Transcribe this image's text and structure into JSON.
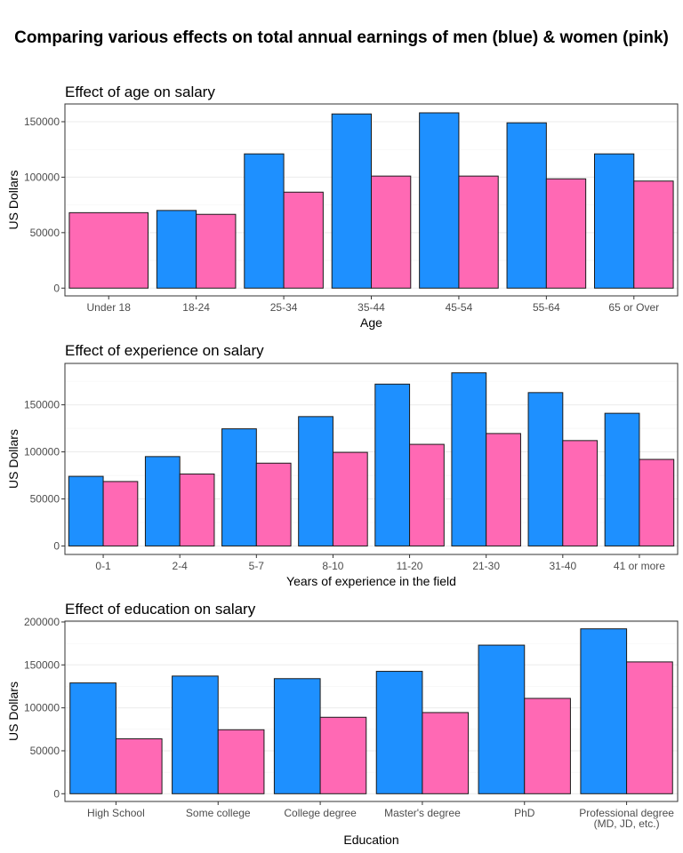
{
  "title": "Comparing various effects on total annual earnings of men (blue) & women (pink)",
  "colors": {
    "men": "#1e90ff",
    "women": "#ff69b4"
  },
  "chart_data": [
    {
      "type": "bar",
      "title": "Effect of age on salary",
      "xlabel": "Age",
      "ylabel": "US Dollars",
      "categories": [
        "Under 18",
        "18-24",
        "25-34",
        "35-44",
        "45-54",
        "55-64",
        "65 or Over"
      ],
      "series": [
        {
          "values": [
            null,
            70000,
            121000,
            157000,
            158000,
            149000,
            121000
          ]
        },
        {
          "values": [
            68000,
            66500,
            86500,
            101000,
            101000,
            98500,
            96500
          ]
        }
      ],
      "ylim": [
        -7000,
        166000
      ],
      "yticks": [
        0,
        50000,
        100000,
        150000
      ],
      "grid": true
    },
    {
      "type": "bar",
      "title": "Effect of experience on salary",
      "xlabel": "Years of experience in the field",
      "ylabel": "US Dollars",
      "categories": [
        "0-1",
        "2-4",
        "5-7",
        "8-10",
        "11-20",
        "21-30",
        "31-40",
        "41 or more"
      ],
      "series": [
        {
          "values": [
            74000,
            95000,
            124500,
            137500,
            172000,
            184000,
            163000,
            141000
          ]
        },
        {
          "values": [
            68500,
            76500,
            88000,
            99500,
            108000,
            119500,
            112000,
            92000
          ]
        }
      ],
      "ylim": [
        -9000,
        194000
      ],
      "yticks": [
        0,
        50000,
        100000,
        150000
      ],
      "grid": true
    },
    {
      "type": "bar",
      "title": "Effect of education on salary",
      "xlabel": "Education",
      "ylabel": "US Dollars",
      "categories": [
        "High School",
        "Some college",
        "College degree",
        "Master's degree",
        "PhD",
        "Professional degree\n(MD, JD, etc.)"
      ],
      "series": [
        {
          "values": [
            129000,
            137000,
            134000,
            142500,
            173000,
            192000
          ]
        },
        {
          "values": [
            64000,
            74500,
            89000,
            94500,
            111000,
            153500
          ]
        }
      ],
      "ylim": [
        -9000,
        201000
      ],
      "yticks": [
        0,
        50000,
        100000,
        150000,
        200000
      ],
      "grid": true
    }
  ]
}
